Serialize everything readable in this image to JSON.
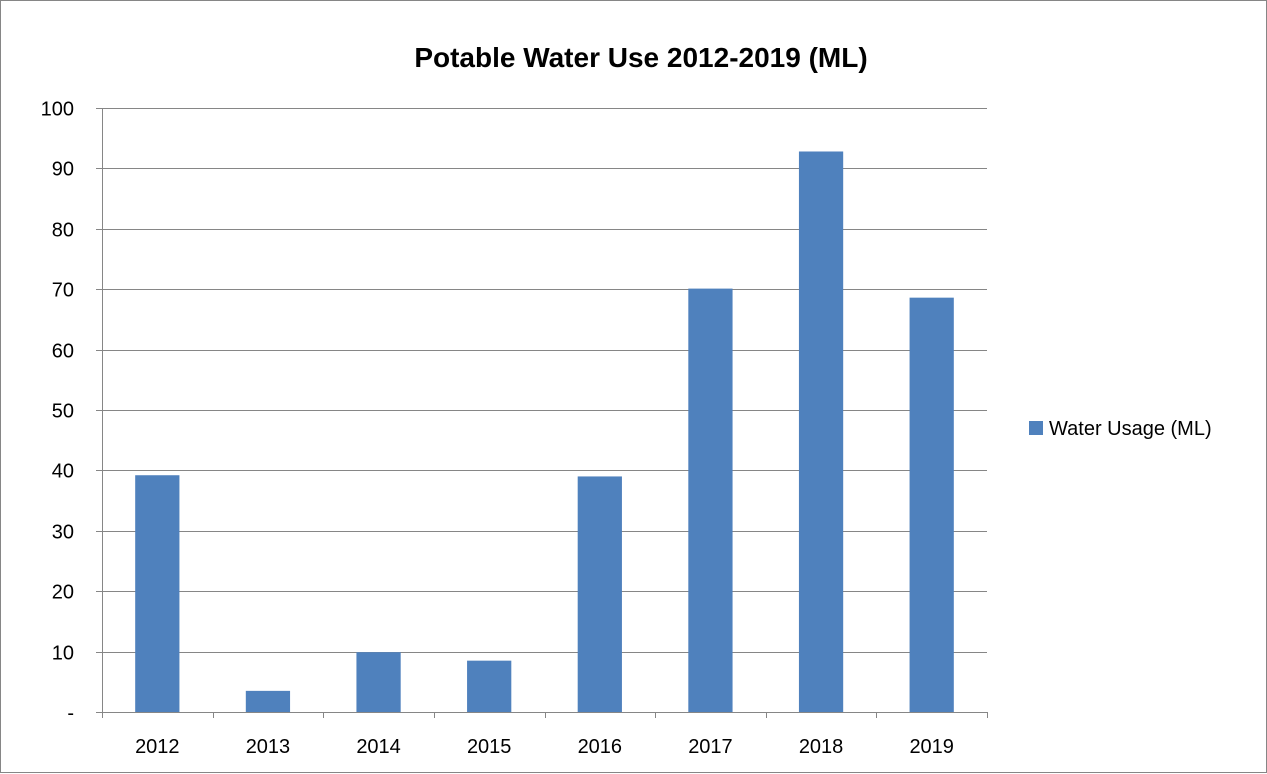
{
  "chart_data": {
    "type": "bar",
    "title": "Potable Water Use 2012-2019 (ML)",
    "xlabel": "",
    "ylabel": "",
    "categories": [
      "2012",
      "2013",
      "2014",
      "2015",
      "2016",
      "2017",
      "2018",
      "2019"
    ],
    "series": [
      {
        "name": "Water Usage (ML)",
        "color": "#4f81bd",
        "values": [
          39.2,
          3.5,
          9.9,
          8.5,
          39.0,
          70.1,
          92.8,
          68.6
        ]
      }
    ],
    "ylim": [
      0,
      100
    ],
    "yticks": [
      0,
      10,
      20,
      30,
      40,
      50,
      60,
      70,
      80,
      90,
      100
    ],
    "ytick_labels": [
      "-",
      "10",
      "20",
      "30",
      "40",
      "50",
      "60",
      "70",
      "80",
      "90",
      "100"
    ],
    "grid": "horizontal",
    "legend": "right"
  }
}
